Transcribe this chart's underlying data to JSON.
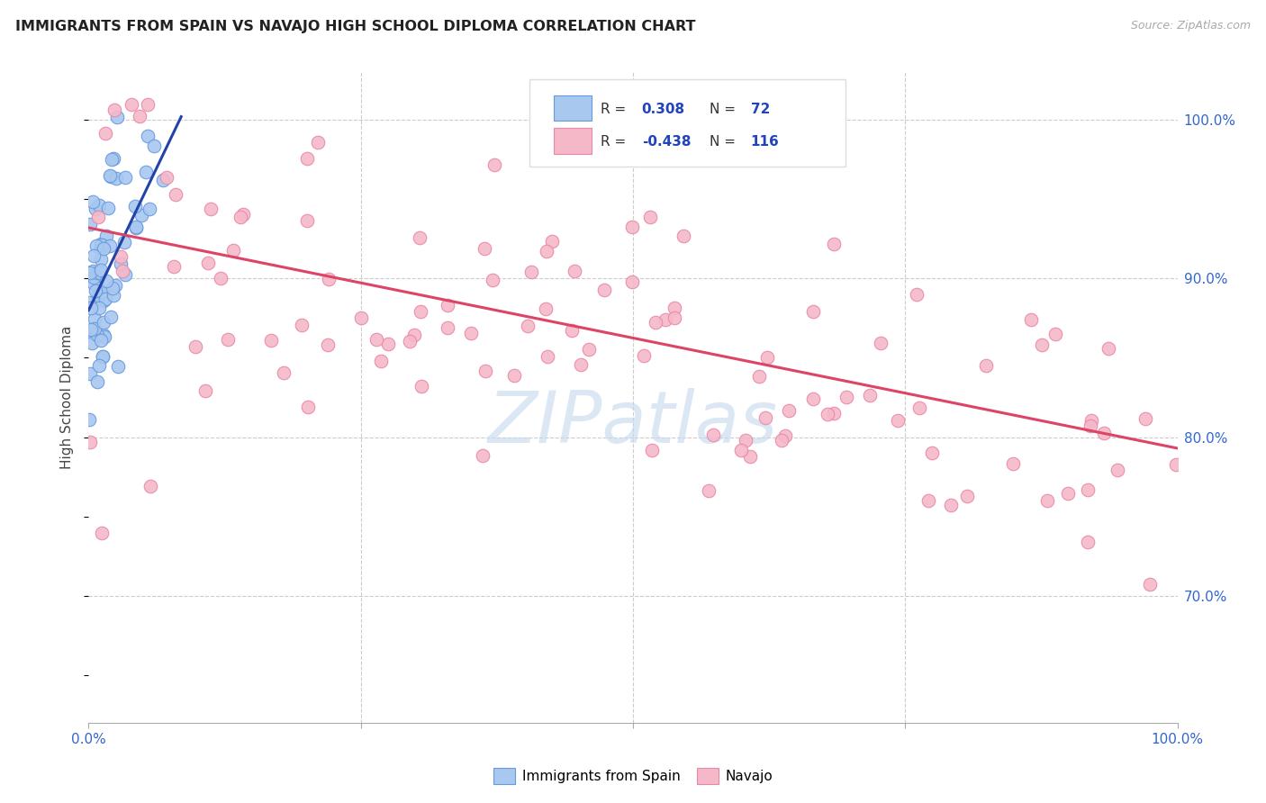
{
  "title": "IMMIGRANTS FROM SPAIN VS NAVAJO HIGH SCHOOL DIPLOMA CORRELATION CHART",
  "source": "Source: ZipAtlas.com",
  "ylabel": "High School Diploma",
  "watermark": "ZIPatlas",
  "blue_color": "#A8C8F0",
  "blue_edge_color": "#6699DD",
  "pink_color": "#F5B8C8",
  "pink_edge_color": "#E888A8",
  "blue_line_color": "#2244AA",
  "pink_line_color": "#DD4466",
  "legend_r_color": "#2244BB",
  "legend_n_color": "#2244BB",
  "r1": "0.308",
  "n1": "72",
  "r2": "-0.438",
  "n2": "116",
  "xlim": [
    0,
    1.0
  ],
  "ylim": [
    0.62,
    1.03
  ],
  "ytick_vals": [
    0.7,
    0.8,
    0.9,
    1.0
  ],
  "ytick_labels": [
    "70.0%",
    "80.0%",
    "90.0%",
    "100.0%"
  ],
  "xtick_vals": [
    0.0,
    0.25,
    0.5,
    0.75,
    1.0
  ],
  "xtick_labels_show": [
    "0.0%",
    "",
    "",
    "",
    "100.0%"
  ],
  "blue_line_x": [
    0.0,
    0.085
  ],
  "blue_line_y": [
    0.88,
    1.002
  ],
  "pink_line_x": [
    0.0,
    1.0
  ],
  "pink_line_y": [
    0.932,
    0.793
  ]
}
